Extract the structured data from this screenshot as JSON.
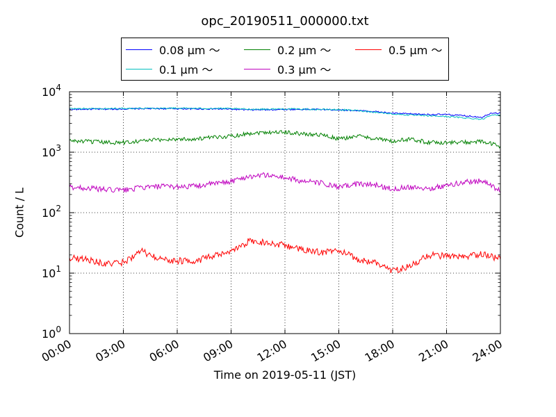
{
  "chart_data": {
    "type": "line",
    "title": "opc_20190511_000000.txt",
    "xlabel": "Time on 2019-05-11 (JST)",
    "ylabel": "Count / L",
    "x_ticks": [
      "00:00",
      "03:00",
      "06:00",
      "09:00",
      "12:00",
      "15:00",
      "18:00",
      "21:00",
      "24:00"
    ],
    "x_range_hours": [
      0,
      24
    ],
    "y_scale": "log",
    "y_range": [
      1,
      10000
    ],
    "y_ticks": [
      {
        "base": "10",
        "exp": "0"
      },
      {
        "base": "10",
        "exp": "1"
      },
      {
        "base": "10",
        "exp": "2"
      },
      {
        "base": "10",
        "exp": "3"
      },
      {
        "base": "10",
        "exp": "4"
      }
    ],
    "grid": true,
    "legend_position": "top",
    "series": [
      {
        "name": "0.08 μm ～",
        "color": "#0000ff",
        "x": [
          0,
          1,
          2,
          3,
          4,
          5,
          6,
          7,
          8,
          9,
          10,
          11,
          12,
          13,
          14,
          15,
          16,
          17,
          18,
          19,
          20,
          21,
          22,
          23,
          23.5,
          24
        ],
        "y": [
          5100,
          5150,
          5150,
          5200,
          5250,
          5250,
          5250,
          5200,
          5200,
          5150,
          5000,
          5050,
          5100,
          5100,
          5100,
          5000,
          4900,
          4700,
          4400,
          4300,
          4200,
          4200,
          4000,
          3800,
          4500,
          4400
        ]
      },
      {
        "name": "0.1 μm ～",
        "color": "#00bfbf",
        "x": [
          0,
          1,
          2,
          3,
          4,
          5,
          6,
          7,
          8,
          9,
          10,
          11,
          12,
          13,
          14,
          15,
          16,
          17,
          18,
          19,
          20,
          21,
          22,
          23,
          23.5,
          24
        ],
        "y": [
          5250,
          5250,
          5250,
          5300,
          5350,
          5350,
          5350,
          5300,
          5300,
          5250,
          5150,
          5150,
          5200,
          5150,
          5100,
          5050,
          4900,
          4600,
          4300,
          4100,
          4000,
          3900,
          3700,
          3500,
          4200,
          4000
        ]
      },
      {
        "name": "0.2 μm ～",
        "color": "#008000",
        "x": [
          0,
          1,
          2,
          3,
          4,
          5,
          6,
          7,
          8,
          9,
          10,
          11,
          12,
          13,
          14,
          15,
          16,
          17,
          18,
          19,
          20,
          21,
          22,
          23,
          24
        ],
        "y": [
          1550,
          1500,
          1450,
          1450,
          1550,
          1600,
          1650,
          1650,
          1750,
          1850,
          2050,
          2150,
          2150,
          2000,
          1950,
          1650,
          1850,
          1700,
          1500,
          1650,
          1450,
          1450,
          1450,
          1500,
          1250
        ]
      },
      {
        "name": "0.3 μm ～",
        "color": "#bf00bf",
        "x": [
          0,
          1,
          2,
          3,
          4,
          5,
          6,
          7,
          8,
          9,
          10,
          11,
          12,
          13,
          14,
          15,
          16,
          17,
          18,
          19,
          20,
          21,
          22,
          23,
          24
        ],
        "y": [
          265,
          255,
          240,
          235,
          260,
          270,
          270,
          275,
          300,
          330,
          400,
          420,
          380,
          330,
          310,
          260,
          300,
          290,
          245,
          270,
          250,
          280,
          320,
          340,
          225
        ]
      },
      {
        "name": "0.5 μm ～",
        "color": "#ff0000",
        "x": [
          0,
          1,
          2,
          3,
          4,
          5,
          6,
          7,
          8,
          9,
          10,
          11,
          12,
          13,
          14,
          15,
          16,
          17,
          18,
          19,
          20,
          21,
          22,
          23,
          24
        ],
        "y": [
          18,
          17,
          14,
          15,
          23,
          17,
          16,
          16,
          19,
          22,
          34,
          32,
          29,
          24,
          22,
          24,
          17,
          15,
          11,
          13,
          20,
          19,
          18,
          21,
          17
        ]
      }
    ]
  }
}
